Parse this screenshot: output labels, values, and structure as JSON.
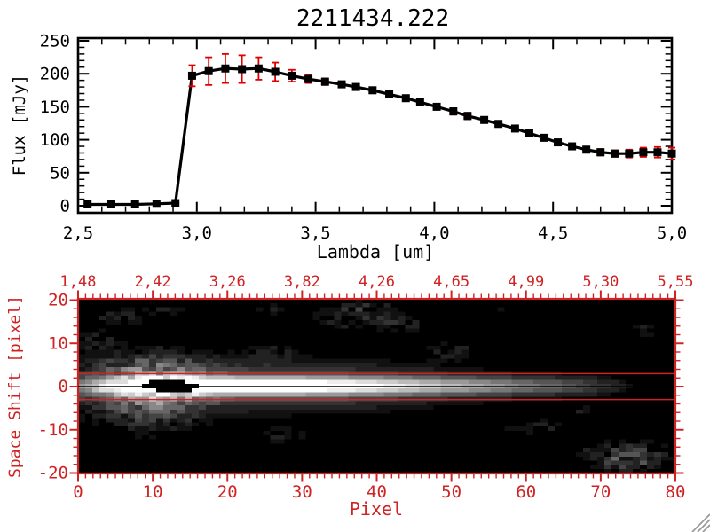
{
  "window": {
    "background": "#ffffff",
    "resize_grip_color": "#9a9a9a"
  },
  "colors": {
    "plot_black": "#000000",
    "error_bar_red": "#e00000",
    "bottom_axis_red": "#cf2323"
  },
  "chart_data": [
    {
      "type": "line",
      "title": "2211434.222",
      "xlabel": "Lambda [um]",
      "ylabel": "Flux [mJy]",
      "xlim": [
        2.5,
        5.0
      ],
      "ylim": [
        0,
        250
      ],
      "grid": false,
      "marker": "filled-square",
      "line_color": "#000000",
      "error_color": "#e00000",
      "x_ticks": [
        {
          "v": 2.5,
          "label": "2,5"
        },
        {
          "v": 3.0,
          "label": "3,0"
        },
        {
          "v": 3.5,
          "label": "3,5"
        },
        {
          "v": 4.0,
          "label": "4,0"
        },
        {
          "v": 4.5,
          "label": "4,5"
        },
        {
          "v": 5.0,
          "label": "5,0"
        }
      ],
      "x_minor_step": 0.1,
      "y_ticks": [
        {
          "v": 0,
          "label": "0"
        },
        {
          "v": 50,
          "label": "50"
        },
        {
          "v": 100,
          "label": "100"
        },
        {
          "v": 150,
          "label": "150"
        },
        {
          "v": 200,
          "label": "200"
        },
        {
          "v": 250,
          "label": "250"
        }
      ],
      "y_minor_step": 10,
      "points": [
        [
          2.54,
          2,
          3
        ],
        [
          2.64,
          2,
          3
        ],
        [
          2.74,
          2,
          3
        ],
        [
          2.83,
          3,
          3
        ],
        [
          2.91,
          4,
          3
        ],
        [
          2.98,
          197,
          16
        ],
        [
          3.05,
          204,
          21
        ],
        [
          3.12,
          208,
          22
        ],
        [
          3.19,
          207,
          21
        ],
        [
          3.26,
          208,
          17
        ],
        [
          3.33,
          203,
          14
        ],
        [
          3.4,
          197,
          9
        ],
        [
          3.47,
          192,
          6
        ],
        [
          3.54,
          188,
          5
        ],
        [
          3.61,
          184,
          4
        ],
        [
          3.67,
          180,
          4
        ],
        [
          3.74,
          175,
          4
        ],
        [
          3.81,
          169,
          4
        ],
        [
          3.88,
          163,
          4
        ],
        [
          3.94,
          157,
          4
        ],
        [
          4.01,
          150,
          4
        ],
        [
          4.08,
          143,
          5
        ],
        [
          4.14,
          136,
          5
        ],
        [
          4.21,
          130,
          4
        ],
        [
          4.27,
          124,
          4
        ],
        [
          4.34,
          117,
          4
        ],
        [
          4.4,
          110,
          4
        ],
        [
          4.46,
          103,
          4
        ],
        [
          4.52,
          96,
          4
        ],
        [
          4.58,
          90,
          4
        ],
        [
          4.64,
          85,
          4
        ],
        [
          4.7,
          81,
          5
        ],
        [
          4.76,
          79,
          5
        ],
        [
          4.82,
          79,
          6
        ],
        [
          4.88,
          81,
          7
        ],
        [
          4.94,
          81,
          8
        ],
        [
          5.0,
          79,
          9
        ]
      ]
    },
    {
      "type": "heatmap",
      "xlabel": "Pixel",
      "ylabel": "Space Shift [pixel]",
      "axis_color": "#cf2323",
      "centroid_line_color": "#000000",
      "xlim": [
        0,
        80
      ],
      "ylim": [
        -20,
        20
      ],
      "x_ticks": [
        {
          "v": 0,
          "label": "0"
        },
        {
          "v": 10,
          "label": "10"
        },
        {
          "v": 20,
          "label": "20"
        },
        {
          "v": 30,
          "label": "30"
        },
        {
          "v": 40,
          "label": "40"
        },
        {
          "v": 50,
          "label": "50"
        },
        {
          "v": 60,
          "label": "60"
        },
        {
          "v": 70,
          "label": "70"
        },
        {
          "v": 80,
          "label": "80"
        }
      ],
      "x_minor_step": 1,
      "y_ticks": [
        {
          "v": 20,
          "label": "20"
        },
        {
          "v": 10,
          "label": "10"
        },
        {
          "v": 0,
          "label": "0"
        },
        {
          "v": -10,
          "label": "-10"
        },
        {
          "v": -20,
          "label": "-20"
        }
      ],
      "y_minor_step": 2,
      "top_axis_labels": [
        {
          "v": 0,
          "label": "1,48"
        },
        {
          "v": 10,
          "label": "2,42"
        },
        {
          "v": 20,
          "label": "3,26"
        },
        {
          "v": 30,
          "label": "3,82"
        },
        {
          "v": 40,
          "label": "4,26"
        },
        {
          "v": 50,
          "label": "4,65"
        },
        {
          "v": 60,
          "label": "4,99"
        },
        {
          "v": 70,
          "label": "5,30"
        },
        {
          "v": 80,
          "label": "5,55"
        }
      ],
      "grid_cols": 84,
      "grid_rows": 41,
      "aperture_lines_shift": [
        3,
        -3
      ],
      "trace_centroid_shift": 0,
      "trace_amp_profile": [
        [
          0,
          0.42
        ],
        [
          4,
          0.6
        ],
        [
          8,
          0.95
        ],
        [
          12,
          1.0
        ],
        [
          30,
          0.98
        ],
        [
          38,
          0.85
        ],
        [
          46,
          0.72
        ],
        [
          54,
          0.6
        ],
        [
          60,
          0.5
        ],
        [
          66,
          0.38
        ],
        [
          70,
          0.28
        ],
        [
          74,
          0.16
        ],
        [
          77,
          0.07
        ],
        [
          80,
          0.02
        ],
        [
          83,
          0.0
        ]
      ],
      "trace_sigma": 1.5,
      "wing_sigma": 4.0,
      "wing_amp": 0.28,
      "halos": [
        [
          11,
          0,
          5,
          3.5,
          0.4
        ],
        [
          9,
          4,
          6,
          3.2,
          0.3
        ],
        [
          9,
          -5,
          5.5,
          4,
          0.3
        ]
      ],
      "blobs": [
        [
          5,
          16.5,
          3.5,
          1.4,
          0.16
        ],
        [
          12,
          17.5,
          2.5,
          1.2,
          0.13
        ],
        [
          26.5,
          18,
          1.8,
          1,
          0.14
        ],
        [
          38.5,
          16.5,
          4,
          2,
          0.25
        ],
        [
          45,
          14.5,
          2.5,
          1.5,
          0.16
        ],
        [
          51.5,
          8.5,
          2.2,
          1.6,
          0.2
        ],
        [
          26.5,
          7.5,
          2.5,
          1.8,
          0.14
        ],
        [
          2,
          11,
          2,
          2,
          0.15
        ],
        [
          28.5,
          -11.5,
          2.5,
          1.4,
          0.14
        ],
        [
          63.5,
          -9.5,
          3,
          1.5,
          0.16
        ],
        [
          70,
          -6,
          1.5,
          1,
          0.12
        ],
        [
          76.5,
          -17,
          4,
          2.3,
          0.45
        ],
        [
          79,
          13,
          2.5,
          1.3,
          0.14
        ],
        [
          40,
          18.5,
          2,
          1,
          0.15
        ],
        [
          58,
          17.5,
          1.5,
          0.8,
          0.1
        ]
      ],
      "mask_cells": [
        {
          "s": 1,
          "p0": 10,
          "p1": 14
        },
        {
          "s": 0,
          "p0": 9,
          "p1": 16
        },
        {
          "s": -1,
          "p0": 11,
          "p1": 15
        }
      ]
    }
  ]
}
